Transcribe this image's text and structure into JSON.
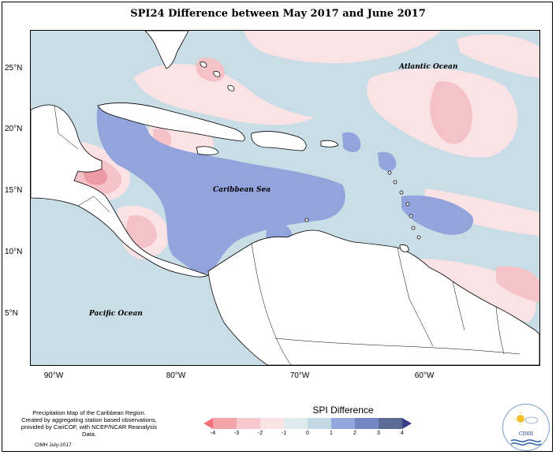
{
  "title": "SPI24 Difference between May 2017 and June 2017",
  "latitude_labels": [
    "25°N",
    "20°N",
    "15°N",
    "10°N",
    "5°N"
  ],
  "longitude_labels": [
    "90°W",
    "80°W",
    "70°W",
    "60°W"
  ],
  "ocean_labels": {
    "atlantic": "Atlantic Ocean",
    "caribbean": "Caribbean Sea",
    "pacific": "Pacific Ocean"
  },
  "caption": {
    "line1": "Precipitation Map of the Caribbean Region.",
    "line2": "Created by aggregating station based observations,",
    "line3": "provided by CariCOF, with NCEP/NCAR Reanalysis Data."
  },
  "credit": "CIMH July-2017",
  "legend": {
    "title": "SPI Difference",
    "ticks": [
      "-4",
      "-3",
      "-2",
      "-1",
      "0",
      "1",
      "2",
      "3",
      "4"
    ],
    "colors": [
      "#f0707a",
      "#f3a4ab",
      "#f7c8cd",
      "#fbe2e4",
      "#ddebee",
      "#c2d9e3",
      "#93a6de",
      "#7287c4",
      "#5b6b96",
      "#3b3f8a"
    ]
  },
  "logo": {
    "text": "CIMH"
  },
  "colors": {
    "ocean_base": "#c9dde6",
    "land": "#ffffff",
    "negative_light": "#fbe2e4",
    "negative_mid": "#f5c2c8",
    "negative_strong": "#ec9aa3",
    "positive_mid": "#93a4dc",
    "positive_strong": "#6f86b8"
  }
}
